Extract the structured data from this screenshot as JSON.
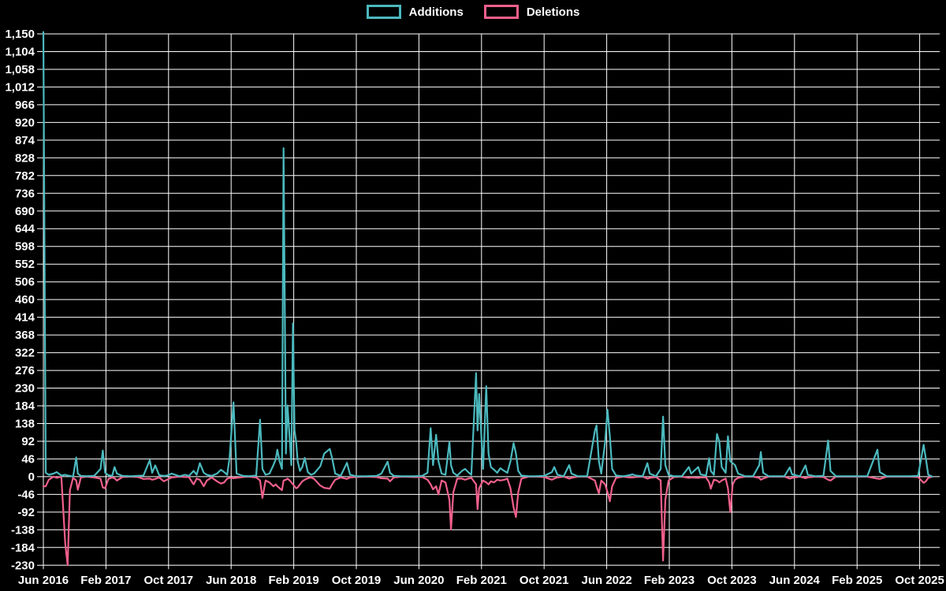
{
  "legend": {
    "items": [
      {
        "label": "Additions",
        "color": "#4bb9be"
      },
      {
        "label": "Deletions",
        "color": "#f0608c"
      }
    ]
  },
  "chart_data": {
    "type": "line",
    "title": "",
    "background_color": "#000000",
    "grid_color": "#ffffff",
    "text_color": "#ffffff",
    "legend_position": "top-center",
    "grid": true,
    "x_axis": {
      "start": "Jun 2016",
      "end": "Nov 2025",
      "tick_interval_months": 8,
      "tick_labels": [
        "Jun 2016",
        "Feb 2017",
        "Oct 2017",
        "Jun 2018",
        "Feb 2019",
        "Oct 2019",
        "Jun 2020",
        "Feb 2021",
        "Oct 2021",
        "Jun 2022",
        "Feb 2023",
        "Oct 2023",
        "Jun 2024",
        "Feb 2025",
        "Oct 2025"
      ]
    },
    "y_axis": {
      "min": -230,
      "max": 1150,
      "step": 46,
      "tick_labels": [
        "-230",
        "-184",
        "-138",
        "-92",
        "-46",
        "0",
        "46",
        "92",
        "138",
        "184",
        "230",
        "276",
        "322",
        "368",
        "414",
        "460",
        "506",
        "552",
        "598",
        "644",
        "690",
        "736",
        "782",
        "828",
        "874",
        "920",
        "966",
        "1,012",
        "1,058",
        "1,104",
        "1,150"
      ]
    },
    "series_names": [
      "Additions",
      "Deletions"
    ],
    "series_colors": [
      "#4bb9be",
      "#f0608c"
    ],
    "points_format": [
      "months_since_jun_2016",
      "additions",
      "deletions"
    ],
    "points": [
      [
        0,
        1155,
        -25
      ],
      [
        0.3,
        10,
        -25
      ],
      [
        0.7,
        5,
        -8
      ],
      [
        1.3,
        8,
        0
      ],
      [
        1.7,
        12,
        -3
      ],
      [
        2.3,
        3,
        0
      ],
      [
        2.8,
        5,
        -175
      ],
      [
        3.1,
        3,
        -230
      ],
      [
        3.4,
        2,
        -35
      ],
      [
        3.8,
        0,
        -3
      ],
      [
        4.2,
        50,
        -10
      ],
      [
        4.4,
        8,
        -34
      ],
      [
        4.8,
        2,
        -2
      ],
      [
        5.5,
        1,
        0
      ],
      [
        6.5,
        2,
        -2
      ],
      [
        7.3,
        20,
        -5
      ],
      [
        7.6,
        68,
        -28
      ],
      [
        7.9,
        10,
        -30
      ],
      [
        8.3,
        4,
        -6
      ],
      [
        8.8,
        2,
        -2
      ],
      [
        9.1,
        25,
        -4
      ],
      [
        9.4,
        8,
        -10
      ],
      [
        10.1,
        2,
        -1
      ],
      [
        11.1,
        1,
        0
      ],
      [
        12.1,
        2,
        -1
      ],
      [
        12.8,
        3,
        -6
      ],
      [
        13.6,
        43,
        -5
      ],
      [
        13.9,
        10,
        -8
      ],
      [
        14.3,
        29,
        -6
      ],
      [
        14.8,
        4,
        -2
      ],
      [
        15.4,
        2,
        -12
      ],
      [
        15.8,
        3,
        -8
      ],
      [
        16.4,
        8,
        -2
      ],
      [
        17.4,
        1,
        0
      ],
      [
        18.1,
        5,
        -1
      ],
      [
        18.6,
        2,
        -1
      ],
      [
        19.2,
        15,
        -20
      ],
      [
        19.6,
        5,
        -5
      ],
      [
        20,
        35,
        -8
      ],
      [
        20.5,
        10,
        -25
      ],
      [
        20.9,
        5,
        -10
      ],
      [
        21.5,
        2,
        -2
      ],
      [
        22.2,
        8,
        -12
      ],
      [
        22.7,
        18,
        -18
      ],
      [
        23.1,
        12,
        -15
      ],
      [
        23.5,
        5,
        -5
      ],
      [
        23.8,
        49,
        -3
      ],
      [
        24.3,
        193,
        -4
      ],
      [
        24.7,
        8,
        -3
      ],
      [
        25.5,
        2,
        -1
      ],
      [
        26.2,
        1,
        0
      ],
      [
        27.2,
        3,
        -2
      ],
      [
        27.7,
        148,
        -10
      ],
      [
        28,
        20,
        -55
      ],
      [
        28.4,
        5,
        -10
      ],
      [
        28.9,
        8,
        -15
      ],
      [
        29.4,
        30,
        -25
      ],
      [
        29.7,
        45,
        -20
      ],
      [
        29.9,
        70,
        -25
      ],
      [
        30.2,
        40,
        -30
      ],
      [
        30.5,
        20,
        -35
      ],
      [
        30.7,
        853,
        -10
      ],
      [
        31,
        60,
        -8
      ],
      [
        31.2,
        185,
        -5
      ],
      [
        31.5,
        95,
        -10
      ],
      [
        31.7,
        30,
        -15
      ],
      [
        31.9,
        398,
        -20
      ],
      [
        32.1,
        120,
        -25
      ],
      [
        32.3,
        92,
        -30
      ],
      [
        32.5,
        40,
        -28
      ],
      [
        32.8,
        15,
        -20
      ],
      [
        33.1,
        25,
        -12
      ],
      [
        33.4,
        49,
        -8
      ],
      [
        33.8,
        12,
        -4
      ],
      [
        34.2,
        5,
        -2
      ],
      [
        34.6,
        8,
        -6
      ],
      [
        35.4,
        27,
        -23
      ],
      [
        35.9,
        60,
        -29
      ],
      [
        36.6,
        72,
        -31
      ],
      [
        36.9,
        49,
        -20
      ],
      [
        37.3,
        8,
        -8
      ],
      [
        38,
        2,
        -2
      ],
      [
        38.8,
        36,
        -6
      ],
      [
        39.2,
        5,
        -2
      ],
      [
        40,
        1,
        -1
      ],
      [
        41.3,
        1,
        0
      ],
      [
        42.6,
        2,
        -1
      ],
      [
        43.2,
        8,
        -4
      ],
      [
        44,
        39,
        -5
      ],
      [
        44.3,
        10,
        -12
      ],
      [
        44.8,
        2,
        -2
      ],
      [
        45.8,
        1,
        0
      ],
      [
        47.4,
        1,
        -1
      ],
      [
        48.4,
        2,
        -1
      ],
      [
        49.1,
        10,
        -8
      ],
      [
        49.5,
        126,
        -20
      ],
      [
        49.8,
        30,
        -33
      ],
      [
        50.2,
        109,
        -25
      ],
      [
        50.5,
        40,
        -46
      ],
      [
        50.9,
        8,
        -10
      ],
      [
        51.4,
        5,
        -15
      ],
      [
        51.9,
        90,
        -60
      ],
      [
        52.1,
        30,
        -137
      ],
      [
        52.4,
        10,
        -40
      ],
      [
        52.9,
        3,
        -5
      ],
      [
        53.5,
        15,
        -5
      ],
      [
        53.9,
        20,
        -8
      ],
      [
        54.3,
        12,
        -5
      ],
      [
        54.7,
        5,
        -3
      ],
      [
        55.3,
        269,
        -20
      ],
      [
        55.5,
        120,
        -84
      ],
      [
        55.7,
        215,
        -30
      ],
      [
        56.2,
        20,
        -10
      ],
      [
        56.6,
        235,
        -15
      ],
      [
        56.9,
        60,
        -20
      ],
      [
        57.2,
        25,
        -12
      ],
      [
        57.6,
        18,
        -15
      ],
      [
        58,
        10,
        -8
      ],
      [
        58.4,
        22,
        -10
      ],
      [
        58.9,
        15,
        -8
      ],
      [
        59.3,
        10,
        -5
      ],
      [
        59.7,
        40,
        -30
      ],
      [
        60.1,
        87,
        -80
      ],
      [
        60.4,
        60,
        -105
      ],
      [
        60.7,
        15,
        -40
      ],
      [
        61.1,
        3,
        -5
      ],
      [
        62,
        1,
        0
      ],
      [
        63,
        1,
        0
      ],
      [
        64,
        2,
        -1
      ],
      [
        65,
        12,
        -8
      ],
      [
        65.3,
        25,
        -5
      ],
      [
        65.7,
        5,
        -2
      ],
      [
        66.5,
        1,
        0
      ],
      [
        67.2,
        30,
        -5
      ],
      [
        67.5,
        8,
        -3
      ],
      [
        68.3,
        1,
        0
      ],
      [
        69.5,
        1,
        0
      ],
      [
        70.5,
        120,
        -10
      ],
      [
        70.7,
        133,
        -25
      ],
      [
        71,
        40,
        -43
      ],
      [
        71.3,
        8,
        -10
      ],
      [
        71.8,
        90,
        -20
      ],
      [
        72.1,
        174,
        -40
      ],
      [
        72.4,
        105,
        -64
      ],
      [
        72.7,
        20,
        -25
      ],
      [
        73.2,
        3,
        -3
      ],
      [
        74.1,
        1,
        0
      ],
      [
        74.9,
        4,
        -2
      ],
      [
        75.3,
        6,
        -2
      ],
      [
        75.7,
        3,
        -1
      ],
      [
        76.6,
        1,
        0
      ],
      [
        77.2,
        35,
        -5
      ],
      [
        77.5,
        8,
        -3
      ],
      [
        78.3,
        1,
        -1
      ],
      [
        78.9,
        20,
        -10
      ],
      [
        79.2,
        156,
        -218
      ],
      [
        79.5,
        30,
        -60
      ],
      [
        79.9,
        5,
        -10
      ],
      [
        80.6,
        1,
        -1
      ],
      [
        81.6,
        1,
        0
      ],
      [
        82.5,
        25,
        -3
      ],
      [
        82.8,
        8,
        -2
      ],
      [
        83.7,
        25,
        -3
      ],
      [
        84,
        6,
        -2
      ],
      [
        84.7,
        3,
        -2
      ],
      [
        85.1,
        48,
        -15
      ],
      [
        85.3,
        15,
        -31
      ],
      [
        85.7,
        5,
        -8
      ],
      [
        86.1,
        111,
        -10
      ],
      [
        86.4,
        90,
        -15
      ],
      [
        86.7,
        25,
        -10
      ],
      [
        87.2,
        10,
        -5
      ],
      [
        87.5,
        105,
        -30
      ],
      [
        87.8,
        40,
        -92
      ],
      [
        88.1,
        35,
        -20
      ],
      [
        88.4,
        30,
        -8
      ],
      [
        88.8,
        8,
        -3
      ],
      [
        89.7,
        1,
        0
      ],
      [
        90.7,
        1,
        0
      ],
      [
        91.5,
        30,
        -3
      ],
      [
        91.7,
        64,
        -8
      ],
      [
        92,
        10,
        -5
      ],
      [
        92.7,
        1,
        0
      ],
      [
        93.7,
        1,
        0
      ],
      [
        94.7,
        1,
        0
      ],
      [
        95.4,
        24,
        -5
      ],
      [
        95.7,
        6,
        -3
      ],
      [
        96.7,
        1,
        0
      ],
      [
        97.4,
        29,
        -4
      ],
      [
        97.7,
        5,
        -2
      ],
      [
        98.7,
        1,
        0
      ],
      [
        99.7,
        2,
        -1
      ],
      [
        100.3,
        94,
        -8
      ],
      [
        100.6,
        15,
        -10
      ],
      [
        101.3,
        1,
        0
      ],
      [
        102.8,
        1,
        0
      ],
      [
        104.3,
        1,
        0
      ],
      [
        105.3,
        1,
        0
      ],
      [
        106.6,
        70,
        -5
      ],
      [
        106.9,
        12,
        -6
      ],
      [
        107.8,
        1,
        0
      ],
      [
        109.3,
        1,
        0
      ],
      [
        110.8,
        1,
        0
      ],
      [
        111.8,
        2,
        -1
      ],
      [
        112.5,
        83,
        -16
      ],
      [
        112.8,
        46,
        -12
      ],
      [
        113.1,
        5,
        -3
      ],
      [
        113.6,
        0,
        0
      ]
    ]
  }
}
